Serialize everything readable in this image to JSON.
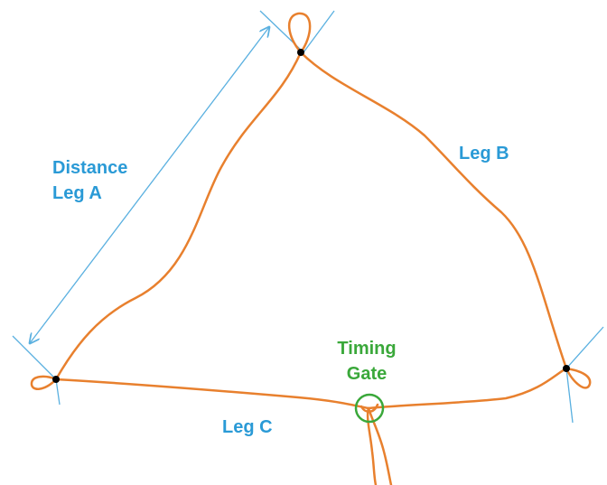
{
  "labels": {
    "distance": [
      "Distance",
      "Leg A"
    ],
    "leg_b": "Leg B",
    "leg_c": "Leg C",
    "timing_gate": [
      "Timing",
      "Gate"
    ]
  }
}
